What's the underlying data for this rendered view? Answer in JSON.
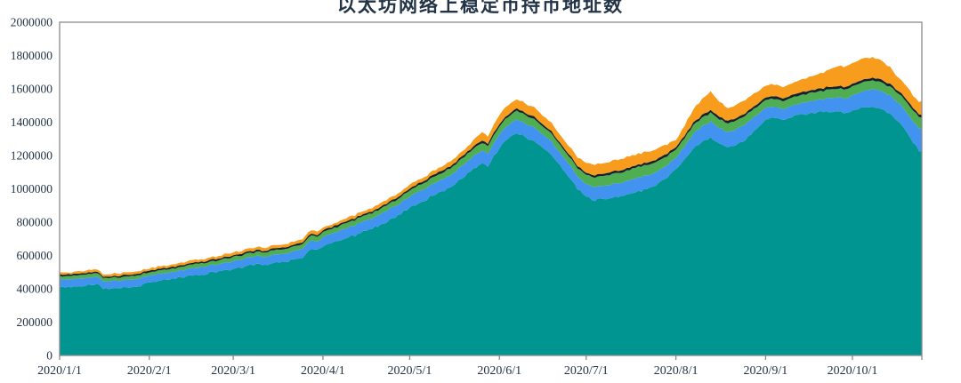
{
  "title": "以太坊网络上稳定币持币地址数",
  "colors": {
    "background": "#FFFFFF",
    "axis": "#8A8A8A",
    "label": "#233447"
  },
  "chart_data": {
    "type": "area",
    "stacked": true,
    "title": "以太坊网络上稳定币持币地址数",
    "xlabel": "",
    "ylabel": "",
    "grid": false,
    "legend_position": "none",
    "ylim": [
      0,
      2000000
    ],
    "y_tick_values": [
      0,
      200000,
      400000,
      600000,
      800000,
      1000000,
      1200000,
      1400000,
      1600000,
      1800000,
      2000000
    ],
    "y_tick_labels": [
      "0",
      "200000",
      "400000",
      "600000",
      "800000",
      "1000000",
      "1200000",
      "1400000",
      "1600000",
      "1800000",
      "2000000"
    ],
    "x_tick_labels": [
      "2020/1/1",
      "2020/2/1",
      "2020/3/1",
      "2020/4/1",
      "2020/5/1",
      "2020/6/1",
      "2020/7/1",
      "2020/8/1",
      "2020/9/1",
      "2020/10/1"
    ],
    "x_tick_days": [
      0,
      31,
      60,
      91,
      121,
      152,
      182,
      213,
      244,
      274
    ],
    "total_days": 298,
    "sample_days": [
      0,
      6,
      10,
      13,
      15,
      20,
      26,
      31,
      38,
      45,
      52,
      60,
      66,
      72,
      78,
      84,
      87,
      89,
      91,
      95,
      100,
      105,
      110,
      115,
      121,
      126,
      131,
      136,
      141,
      143,
      146,
      148,
      152,
      155,
      158,
      161,
      164,
      167,
      170,
      173,
      176,
      179,
      182,
      185,
      188,
      192,
      196,
      200,
      204,
      208,
      213,
      216,
      219,
      222,
      225,
      228,
      231,
      234,
      237,
      240,
      244,
      247,
      250,
      253,
      257,
      261,
      265,
      269,
      272,
      274,
      277,
      281,
      284,
      287,
      289,
      291,
      293,
      295,
      297,
      298
    ],
    "series": [
      {
        "name": "teal",
        "color": "#009590",
        "values": [
          410000,
          415000,
          420000,
          423000,
          400000,
          405000,
          412000,
          437000,
          455000,
          475000,
          495000,
          520000,
          545000,
          550000,
          565000,
          590000,
          640000,
          630000,
          655000,
          680000,
          710000,
          740000,
          775000,
          820000,
          885000,
          930000,
          975000,
          1020000,
          1090000,
          1120000,
          1150000,
          1135000,
          1250000,
          1300000,
          1335000,
          1310000,
          1290000,
          1240000,
          1205000,
          1140000,
          1075000,
          1000000,
          950000,
          935000,
          940000,
          950000,
          965000,
          985000,
          1005000,
          1040000,
          1120000,
          1175000,
          1240000,
          1280000,
          1307000,
          1270000,
          1250000,
          1262000,
          1295000,
          1345000,
          1413000,
          1425000,
          1412000,
          1430000,
          1445000,
          1456000,
          1462000,
          1468000,
          1452000,
          1470000,
          1482000,
          1492000,
          1480000,
          1450000,
          1420000,
          1380000,
          1330000,
          1280000,
          1235000,
          1227000
        ]
      },
      {
        "name": "blue",
        "color": "#4292F0",
        "values": [
          45000,
          46000,
          47000,
          47000,
          45000,
          45000,
          44000,
          42000,
          42000,
          43000,
          44000,
          45000,
          46000,
          47000,
          48000,
          50000,
          52000,
          51000,
          55000,
          57000,
          59000,
          61000,
          63000,
          66000,
          68000,
          70000,
          72000,
          74000,
          76000,
          78000,
          79000,
          79000,
          80000,
          82000,
          83000,
          82000,
          81000,
          80000,
          79000,
          78000,
          77000,
          76000,
          76000,
          78000,
          79000,
          80000,
          81000,
          82000,
          80000,
          76000,
          70000,
          80000,
          88000,
          92000,
          96000,
          94000,
          92000,
          93000,
          94000,
          85000,
          69000,
          68000,
          67000,
          68000,
          70000,
          73000,
          80000,
          85000,
          88000,
          92000,
          98000,
          104000,
          106000,
          108000,
          110000,
          115000,
          120000,
          126000,
          132000,
          133000
        ]
      },
      {
        "name": "green",
        "color": "#4FAD52",
        "values": [
          20000,
          20000,
          21000,
          21000,
          20000,
          20000,
          21000,
          20000,
          21000,
          22000,
          23000,
          24000,
          25000,
          26000,
          27000,
          28000,
          29000,
          29000,
          30000,
          30000,
          31000,
          32000,
          33000,
          34000,
          36000,
          38000,
          40000,
          42000,
          44000,
          45000,
          46000,
          46000,
          48000,
          50000,
          51000,
          50000,
          50000,
          49000,
          48000,
          47000,
          46000,
          50000,
          55000,
          58000,
          60000,
          62000,
          63000,
          64000,
          63000,
          58000,
          48000,
          50000,
          52000,
          52000,
          53000,
          52000,
          52000,
          52000,
          52000,
          50000,
          48000,
          48000,
          47000,
          48000,
          49000,
          50000,
          51000,
          52000,
          52000,
          53000,
          53000,
          53000,
          53000,
          54000,
          56000,
          58000,
          62000,
          65000,
          68000,
          69000
        ]
      },
      {
        "name": "dark",
        "color": "#17222E",
        "values": [
          10000,
          10000,
          10000,
          10000,
          10000,
          10000,
          10000,
          10000,
          10000,
          10000,
          10000,
          10000,
          10000,
          11000,
          11000,
          11000,
          11000,
          11000,
          11000,
          11000,
          11000,
          11000,
          11000,
          11000,
          12000,
          12000,
          12000,
          12000,
          13000,
          13000,
          13000,
          13000,
          14000,
          14000,
          14000,
          14000,
          14000,
          13000,
          13000,
          13000,
          13000,
          13000,
          13000,
          13000,
          13000,
          14000,
          14000,
          14000,
          14000,
          15000,
          16000,
          15000,
          15000,
          16000,
          16000,
          16000,
          15000,
          15000,
          15000,
          16000,
          16000,
          16000,
          16000,
          16000,
          16000,
          16000,
          16000,
          16000,
          16000,
          16000,
          16000,
          16000,
          16000,
          16000,
          16000,
          16000,
          16000,
          16000,
          16000,
          16000
        ]
      },
      {
        "name": "orange",
        "color": "#F79C1D",
        "values": [
          12000,
          13000,
          14000,
          14000,
          13000,
          13000,
          14000,
          13000,
          14000,
          15000,
          16000,
          17000,
          18000,
          18000,
          19000,
          20000,
          21000,
          20000,
          16000,
          17000,
          18000,
          19000,
          20000,
          21000,
          22000,
          24000,
          26000,
          28000,
          30000,
          40000,
          50000,
          45000,
          55000,
          58000,
          55000,
          57000,
          55000,
          52000,
          50000,
          48000,
          47000,
          52000,
          60000,
          62000,
          64000,
          66000,
          66000,
          65000,
          64000,
          62000,
          43000,
          60000,
          80000,
          95000,
          112000,
          90000,
          75000,
          78000,
          80000,
          75000,
          70000,
          72000,
          68000,
          70000,
          75000,
          85000,
          98000,
          120000,
          124000,
          125000,
          127000,
          122000,
          115000,
          100000,
          85000,
          80000,
          78000,
          75000,
          72000,
          86000
        ]
      }
    ]
  }
}
